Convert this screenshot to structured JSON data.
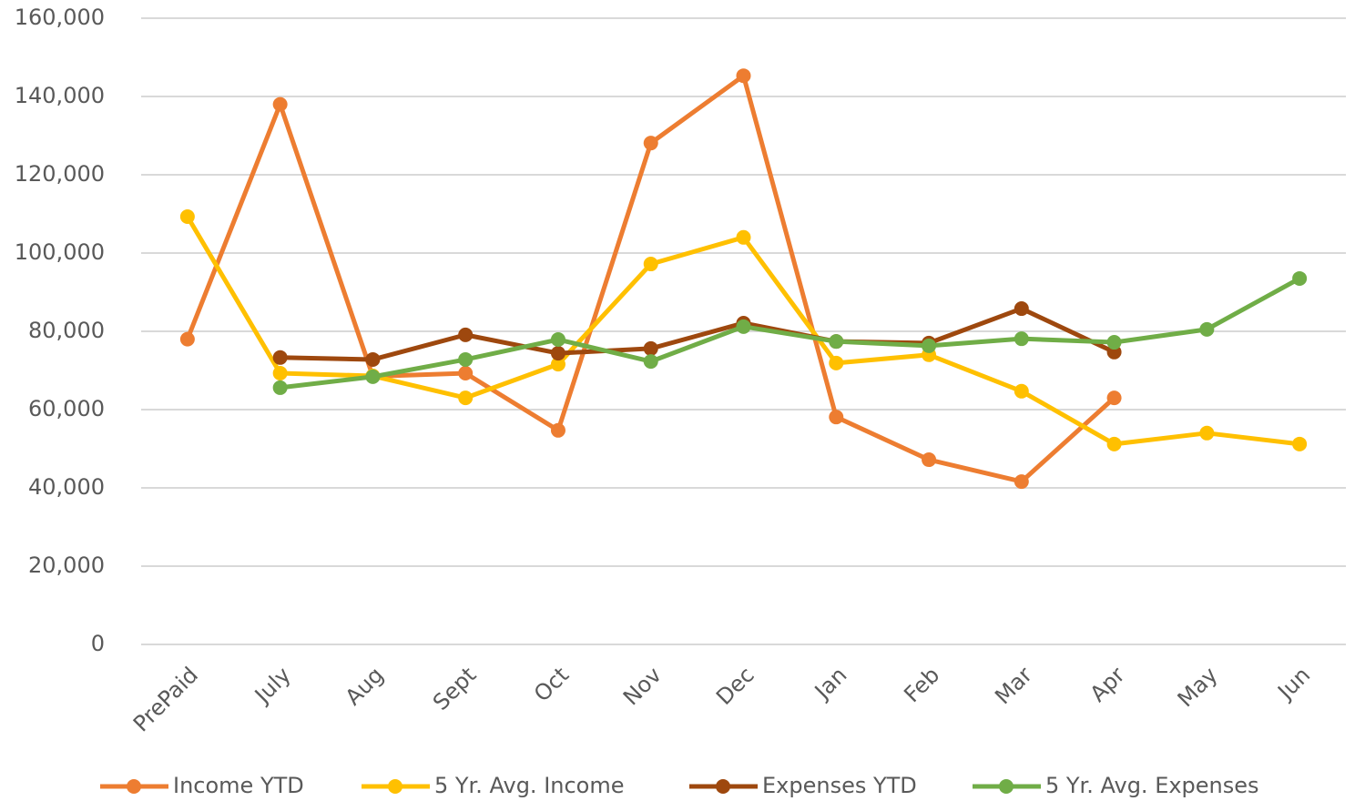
{
  "chart_data": {
    "type": "line",
    "categories": [
      "PrePaid",
      "July",
      "Aug",
      "Sept",
      "Oct",
      "Nov",
      "Dec",
      "Jan",
      "Feb",
      "Mar",
      "Apr",
      "May",
      "Jun"
    ],
    "series": [
      {
        "name": "Income YTD",
        "color": "#ed7d31",
        "values": [
          78000,
          138000,
          68500,
          69300,
          54700,
          128100,
          145300,
          58100,
          47200,
          41600,
          63000,
          null,
          null
        ]
      },
      {
        "name": "5 Yr. Avg. Income",
        "color": "#ffc000",
        "values": [
          109300,
          69300,
          68600,
          63000,
          71600,
          97200,
          104000,
          71900,
          74000,
          64700,
          51200,
          54000,
          51200
        ]
      },
      {
        "name": "Expenses YTD",
        "color": "#9e480e",
        "values": [
          null,
          73300,
          72800,
          79100,
          74400,
          75600,
          82100,
          77400,
          77000,
          85800,
          74700,
          null,
          null
        ]
      },
      {
        "name": "5 Yr. Avg. Expenses",
        "color": "#70ad47",
        "values": [
          null,
          65600,
          68400,
          72800,
          77900,
          72300,
          81200,
          77400,
          76300,
          78100,
          77200,
          80500,
          93500
        ]
      }
    ],
    "ylim": [
      0,
      160000
    ],
    "yticks": [
      0,
      {
        "value": 20000,
        "label": "20,000"
      },
      {
        "value": 40000,
        "label": "40,000"
      },
      {
        "value": 60000,
        "label": "60,000"
      },
      {
        "value": 80000,
        "label": "80,000"
      },
      {
        "value": 100000,
        "label": "100,000"
      },
      {
        "value": 120000,
        "label": "120,000"
      },
      {
        "value": 140000,
        "label": "140,000"
      },
      {
        "value": 160000,
        "label": "160,000"
      }
    ],
    "grid": true,
    "legend": "bottom"
  }
}
